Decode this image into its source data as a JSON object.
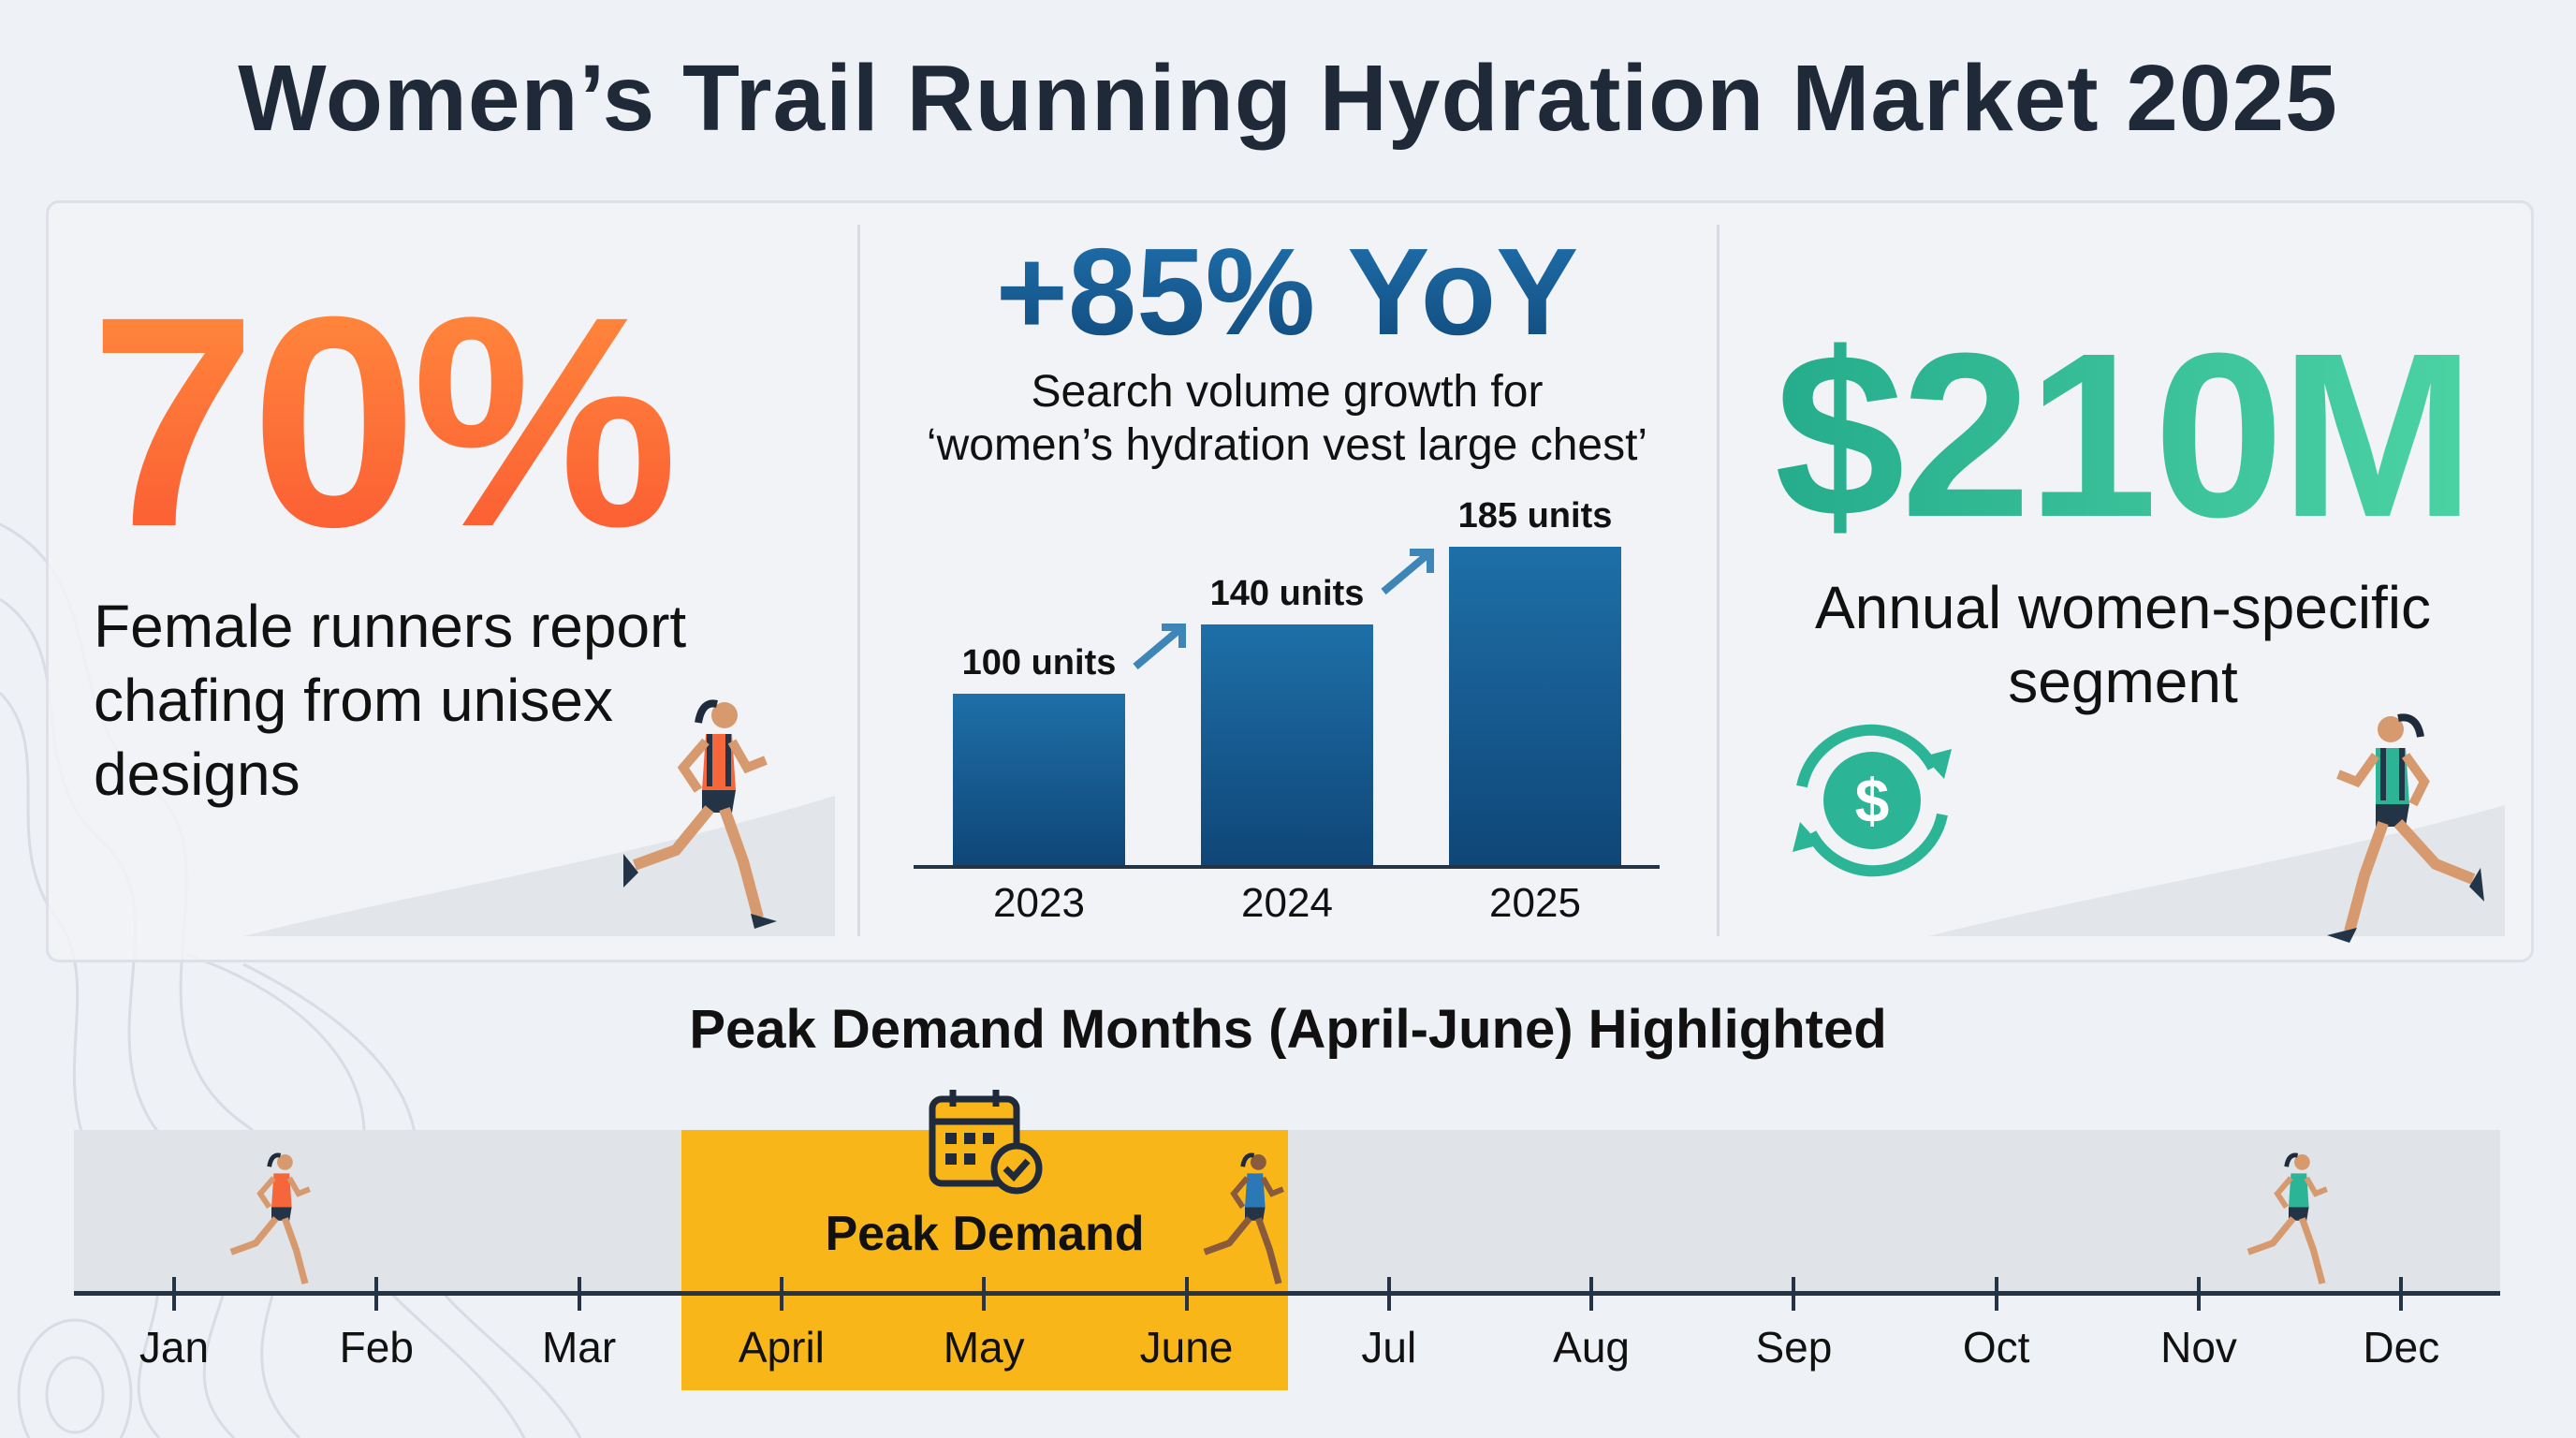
{
  "title": "Women’s Trail Running Hydration Market 2025",
  "stat_chafing": {
    "value": "70%",
    "caption": "Female runners report chafing from unisex designs",
    "color": "#fb6a35"
  },
  "stat_search": {
    "value": "+85% YoY",
    "caption_line1": "Search volume growth for",
    "caption_line2": "‘women’s hydration vest large chest’",
    "color": "#17598f"
  },
  "chart_data": {
    "type": "bar",
    "categories": [
      "2023",
      "2024",
      "2025"
    ],
    "values": [
      100,
      140,
      185
    ],
    "value_labels": [
      "100 units",
      "140 units",
      "185 units"
    ],
    "ylim": [
      0,
      185
    ],
    "xlabel": "",
    "ylabel": ""
  },
  "stat_segment": {
    "value": "$210M",
    "caption": "Annual women-specific segment",
    "color": "#2bb596",
    "icon": "dollar-cycle-icon"
  },
  "timeline": {
    "title": "Peak Demand Months (April-June) Highlighted",
    "peak_label": "Peak Demand",
    "peak_color": "#f9b619",
    "peak_range": [
      "April",
      "June"
    ],
    "months": [
      "Jan",
      "Feb",
      "Mar",
      "April",
      "May",
      "June",
      "Jul",
      "Aug",
      "Sep",
      "Oct",
      "Nov",
      "Dec"
    ],
    "icon": "calendar-check-icon"
  }
}
